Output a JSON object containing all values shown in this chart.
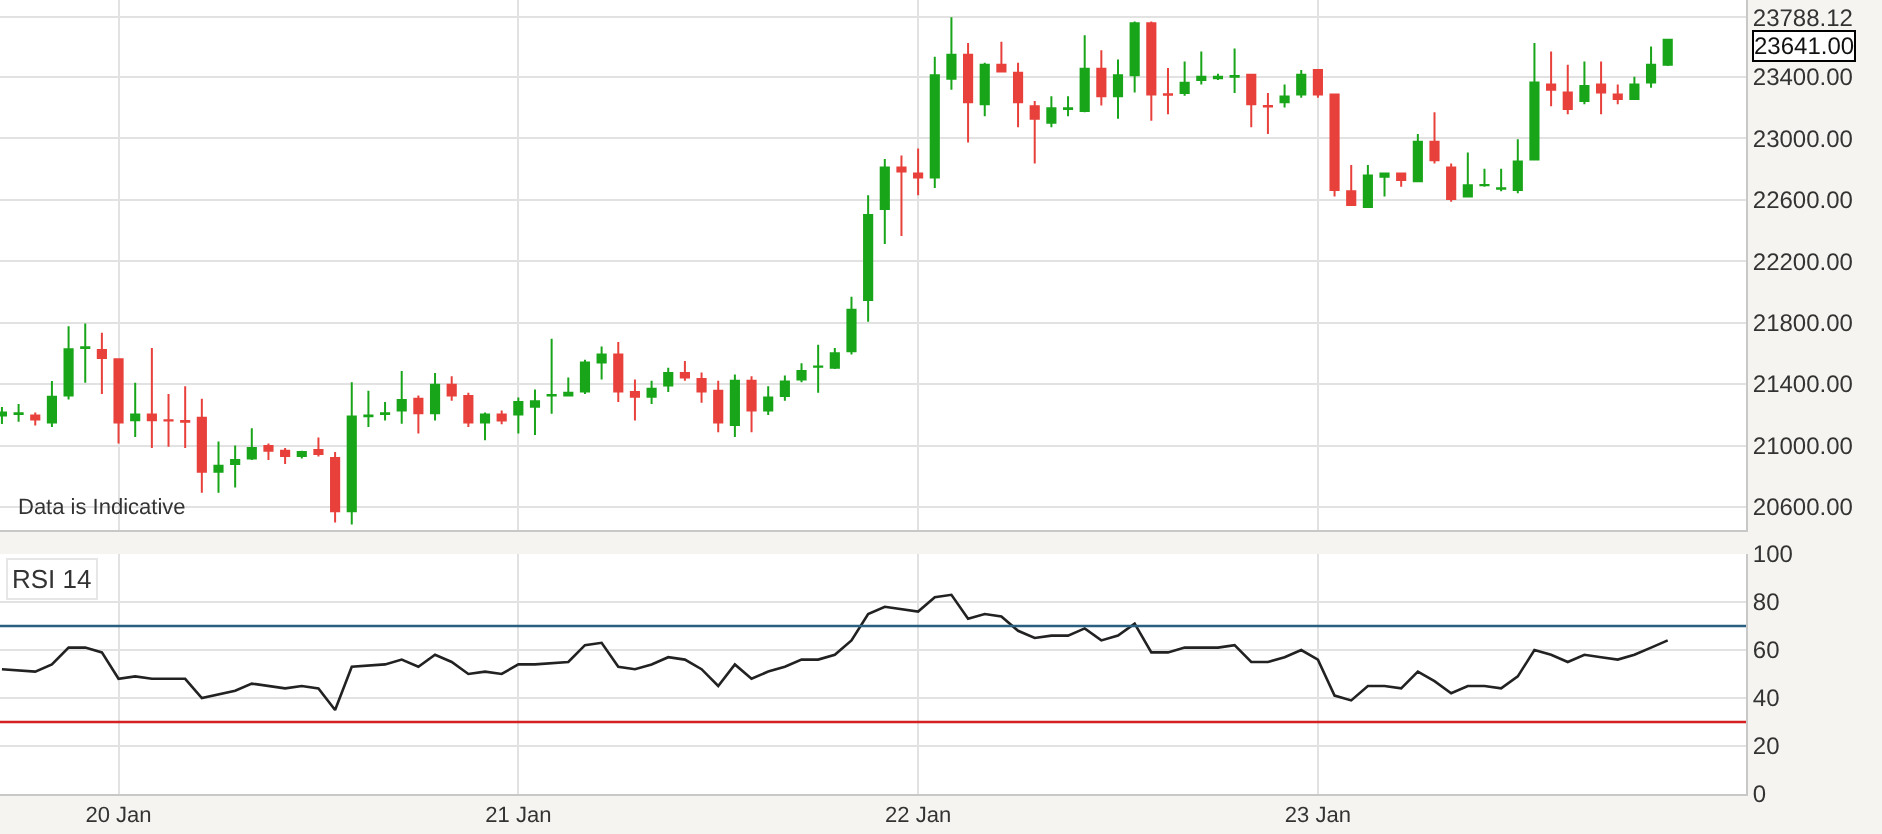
{
  "chart_data": [
    {
      "type": "candlestick",
      "x": [
        "--01-19T17:00",
        "--01-19T18:00",
        "--01-19T19:00",
        "--01-19T20:00",
        "--01-19T21:00",
        "--01-19T22:00",
        "--01-19T23:00",
        "--01-20T00:00",
        "--01-20T01:00",
        "--01-20T02:00",
        "--01-20T03:00",
        "--01-20T04:00",
        "--01-20T05:00",
        "--01-20T06:00",
        "--01-20T07:00",
        "--01-20T08:00",
        "--01-20T09:00",
        "--01-20T10:00",
        "--01-20T11:00",
        "--01-20T12:00",
        "--01-20T13:00",
        "--01-20T14:00",
        "--01-20T15:00",
        "--01-20T16:00",
        "--01-20T17:00",
        "--01-20T18:00",
        "--01-20T19:00",
        "--01-20T20:00",
        "--01-20T21:00",
        "--01-20T22:00",
        "--01-20T23:00",
        "--01-21T00:00",
        "--01-21T01:00",
        "--01-21T02:00",
        "--01-21T03:00",
        "--01-21T04:00",
        "--01-21T05:00",
        "--01-21T06:00",
        "--01-21T07:00",
        "--01-21T08:00",
        "--01-21T09:00",
        "--01-21T10:00",
        "--01-21T11:00",
        "--01-21T12:00",
        "--01-21T13:00",
        "--01-21T14:00",
        "--01-21T15:00",
        "--01-21T16:00",
        "--01-21T17:00",
        "--01-21T18:00",
        "--01-21T19:00",
        "--01-21T20:00",
        "--01-21T21:00",
        "--01-21T22:00",
        "--01-21T23:00",
        "--01-22T00:00",
        "--01-22T01:00",
        "--01-22T02:00",
        "--01-22T03:00",
        "--01-22T04:00",
        "--01-22T05:00",
        "--01-22T06:00",
        "--01-22T07:00",
        "--01-22T08:00",
        "--01-22T09:00",
        "--01-22T10:00",
        "--01-22T11:00",
        "--01-22T12:00",
        "--01-22T13:00",
        "--01-22T14:00",
        "--01-22T15:00",
        "--01-22T16:00",
        "--01-22T17:00",
        "--01-22T18:00",
        "--01-22T19:00",
        "--01-22T20:00",
        "--01-22T21:00",
        "--01-22T22:00",
        "--01-22T23:00",
        "--01-23T00:00",
        "--01-23T01:00",
        "--01-23T02:00",
        "--01-23T03:00",
        "--01-23T04:00",
        "--01-23T05:00",
        "--01-23T06:00",
        "--01-23T07:00",
        "--01-23T08:00",
        "--01-23T09:00",
        "--01-23T10:00",
        "--01-23T11:00",
        "--01-23T12:00",
        "--01-23T13:00",
        "--01-23T14:00",
        "--01-23T15:00",
        "--01-23T16:00",
        "--01-23T17:00",
        "--01-23T18:00",
        "--01-23T19:00",
        "--01-23T20:00",
        "--01-23T21:00"
      ],
      "ohlc": [
        [
          21195,
          21250,
          21140,
          21215
        ],
        [
          21205,
          21270,
          21155,
          21210
        ],
        [
          21195,
          21215,
          21130,
          21170
        ],
        [
          21150,
          21420,
          21120,
          21318
        ],
        [
          21326,
          21776,
          21300,
          21626
        ],
        [
          21635,
          21794,
          21408,
          21640
        ],
        [
          21622,
          21734,
          21335,
          21570
        ],
        [
          21562,
          21565,
          21013,
          21150
        ],
        [
          21164,
          21408,
          21056,
          21202
        ],
        [
          21202,
          21635,
          20983,
          21164
        ],
        [
          21165,
          21335,
          20992,
          21162
        ],
        [
          21160,
          21386,
          20983,
          21155
        ],
        [
          21180,
          21305,
          20692,
          20829
        ],
        [
          20829,
          21026,
          20692,
          20868
        ],
        [
          20880,
          21000,
          20726,
          20906
        ],
        [
          20915,
          21112,
          20905,
          20983
        ],
        [
          20996,
          21013,
          20905,
          20966
        ],
        [
          20966,
          20983,
          20880,
          20932
        ],
        [
          20932,
          20966,
          20915,
          20958
        ],
        [
          20970,
          21052,
          20928,
          20945
        ],
        [
          20919,
          20958,
          20499,
          20572
        ],
        [
          20572,
          21412,
          20486,
          21189
        ],
        [
          21190,
          21356,
          21120,
          21195
        ],
        [
          21205,
          21283,
          21163,
          21210
        ],
        [
          21228,
          21485,
          21142,
          21296
        ],
        [
          21305,
          21326,
          21078,
          21210
        ],
        [
          21210,
          21472,
          21163,
          21395
        ],
        [
          21395,
          21451,
          21292,
          21326
        ],
        [
          21322,
          21343,
          21120,
          21150
        ],
        [
          21150,
          21215,
          21035,
          21202
        ],
        [
          21202,
          21228,
          21138,
          21163
        ],
        [
          21202,
          21313,
          21078,
          21283
        ],
        [
          21253,
          21365,
          21069,
          21288
        ],
        [
          21325,
          21695,
          21206,
          21328
        ],
        [
          21326,
          21442,
          21320,
          21343
        ],
        [
          21352,
          21558,
          21335,
          21541
        ],
        [
          21541,
          21644,
          21429,
          21592
        ],
        [
          21592,
          21673,
          21283,
          21352
        ],
        [
          21348,
          21429,
          21163,
          21318
        ],
        [
          21318,
          21421,
          21271,
          21369
        ],
        [
          21391,
          21506,
          21348,
          21472
        ],
        [
          21472,
          21550,
          21421,
          21442
        ],
        [
          21433,
          21476,
          21279,
          21352
        ],
        [
          21356,
          21421,
          21086,
          21150
        ],
        [
          21133,
          21463,
          21056,
          21421
        ],
        [
          21421,
          21451,
          21086,
          21228
        ],
        [
          21228,
          21386,
          21198,
          21313
        ],
        [
          21322,
          21455,
          21292,
          21416
        ],
        [
          21429,
          21536,
          21412,
          21485
        ],
        [
          21513,
          21656,
          21343,
          21515
        ],
        [
          21506,
          21635,
          21498,
          21600
        ],
        [
          21613,
          21969,
          21592,
          21884
        ],
        [
          21948,
          22629,
          21806,
          22501
        ],
        [
          22539,
          22865,
          22312,
          22809
        ],
        [
          22809,
          22887,
          22364,
          22784
        ],
        [
          22771,
          22934,
          22629,
          22745
        ],
        [
          22745,
          23530,
          22677,
          23410
        ],
        [
          23388,
          23788.12,
          23315,
          23543
        ],
        [
          23543,
          23620,
          22972,
          23234
        ],
        [
          23221,
          23491,
          23144,
          23478
        ],
        [
          23478,
          23628,
          23430,
          23435
        ],
        [
          23427,
          23491,
          23071,
          23234
        ],
        [
          23208,
          23243,
          22835,
          23127
        ],
        [
          23101,
          23273,
          23071,
          23195
        ],
        [
          23191,
          23273,
          23144,
          23195
        ],
        [
          23178,
          23671,
          23170,
          23453
        ],
        [
          23453,
          23573,
          23213,
          23273
        ],
        [
          23273,
          23513,
          23127,
          23410
        ],
        [
          23410,
          23760,
          23298,
          23748
        ],
        [
          23748,
          23760,
          23114,
          23285
        ],
        [
          23286,
          23457,
          23157,
          23283
        ],
        [
          23294,
          23500,
          23277,
          23362
        ],
        [
          23380,
          23564,
          23350,
          23401
        ],
        [
          23390,
          23420,
          23380,
          23401
        ],
        [
          23401,
          23585,
          23294,
          23405
        ],
        [
          23414,
          23420,
          23071,
          23221
        ],
        [
          23210,
          23294,
          23028,
          23206
        ],
        [
          23234,
          23350,
          23200,
          23272
        ],
        [
          23285,
          23444,
          23264,
          23414
        ],
        [
          23444,
          23450,
          23264,
          23285
        ],
        [
          23285,
          23290,
          22621,
          22664
        ],
        [
          22655,
          22826,
          22560,
          22565
        ],
        [
          22552,
          22826,
          22548,
          22758
        ],
        [
          22750,
          22775,
          22621,
          22771
        ],
        [
          22771,
          22775,
          22685,
          22728
        ],
        [
          22720,
          23028,
          22715,
          22977
        ],
        [
          22977,
          23170,
          22835,
          22857
        ],
        [
          22810,
          22835,
          22587,
          22604
        ],
        [
          22621,
          22908,
          22615,
          22694
        ],
        [
          22694,
          22801,
          22685,
          22696
        ],
        [
          22672,
          22801,
          22655,
          22674
        ],
        [
          22664,
          22994,
          22642,
          22848
        ],
        [
          22861,
          23620,
          22855,
          23363
        ],
        [
          23350,
          23564,
          23208,
          23315
        ],
        [
          23298,
          23478,
          23157,
          23191
        ],
        [
          23243,
          23500,
          23221,
          23341
        ],
        [
          23350,
          23500,
          23157,
          23298
        ],
        [
          23285,
          23350,
          23221,
          23255
        ],
        [
          23255,
          23401,
          23250,
          23350
        ],
        [
          23363,
          23598,
          23329,
          23478
        ],
        [
          23478,
          23645,
          23470,
          23641
        ]
      ],
      "colors": [
        "#19a519",
        "#19a519",
        "#e8403b",
        "#19a519",
        "#19a519",
        "#19a519",
        "#e8403b",
        "#e8403b",
        "#19a519",
        "#e8403b",
        "#e8403b",
        "#e8403b",
        "#e8403b",
        "#19a519",
        "#19a519",
        "#19a519",
        "#e8403b",
        "#e8403b",
        "#19a519",
        "#e8403b",
        "#e8403b",
        "#19a519",
        "#19a519",
        "#19a519",
        "#19a519",
        "#e8403b",
        "#19a519",
        "#e8403b",
        "#e8403b",
        "#19a519",
        "#e8403b",
        "#19a519",
        "#19a519",
        "#19a519",
        "#19a519",
        "#19a519",
        "#19a519",
        "#e8403b",
        "#e8403b",
        "#19a519",
        "#19a519",
        "#e8403b",
        "#e8403b",
        "#e8403b",
        "#19a519",
        "#e8403b",
        "#19a519",
        "#19a519",
        "#19a519",
        "#19a519",
        "#19a519",
        "#19a519",
        "#19a519",
        "#19a519",
        "#e8403b",
        "#e8403b",
        "#19a519",
        "#19a519",
        "#e8403b",
        "#19a519",
        "#e8403b",
        "#e8403b",
        "#e8403b",
        "#19a519",
        "#19a519",
        "#19a519",
        "#e8403b",
        "#19a519",
        "#19a519",
        "#e8403b",
        "#e8403b",
        "#19a519",
        "#19a519",
        "#19a519",
        "#19a519",
        "#e8403b",
        "#e8403b",
        "#19a519",
        "#19a519",
        "#e8403b",
        "#e8403b",
        "#e8403b",
        "#19a519",
        "#19a519",
        "#e8403b",
        "#19a519",
        "#e8403b",
        "#e8403b",
        "#19a519",
        "#19a519",
        "#19a519",
        "#19a519",
        "#19a519",
        "#e8403b",
        "#e8403b",
        "#19a519",
        "#e8403b",
        "#e8403b",
        "#19a519",
        "#19a519",
        "#19a519"
      ],
      "xlim": [
        "--01-19T16:53",
        "--01-24T01:42"
      ],
      "xticks": [
        {
          "value": "--01-20",
          "label": null
        },
        {
          "value": "--01-21",
          "label": null
        },
        {
          "value": "--01-22",
          "label": null
        },
        {
          "value": "--01-23",
          "label": null
        }
      ],
      "ylim": [
        20450,
        23900
      ],
      "yticks": [
        {
          "value": 20600,
          "label": "20600.00"
        },
        {
          "value": 21000,
          "label": "21000.00"
        },
        {
          "value": 21400,
          "label": "21400.00"
        },
        {
          "value": 21800,
          "label": "21800.00"
        },
        {
          "value": 22200,
          "label": "22200.00"
        },
        {
          "value": 22600,
          "label": "22600.00"
        },
        {
          "value": 23000,
          "label": "23000.00"
        },
        {
          "value": 23400,
          "label": "23400.00"
        },
        {
          "value": 23788.12,
          "label": "23788.12"
        }
      ],
      "annotations": [
        "Data is Indicative",
        "23641.00"
      ],
      "tick_labels": "y",
      "grid": true
    },
    {
      "type": "line",
      "title": "RSI 14",
      "x": [
        "--01-19T17:00",
        "--01-19T19:00",
        "--01-19T20:00",
        "--01-19T21:00",
        "--01-19T22:00",
        "--01-19T23:00",
        "--01-20T00:00",
        "--01-20T01:00",
        "--01-20T02:00",
        "--01-20T04:00",
        "--01-20T05:00",
        "--01-20T07:00",
        "--01-20T08:00",
        "--01-20T10:00",
        "--01-20T11:00",
        "--01-20T12:00",
        "--01-20T13:00",
        "--01-20T14:00",
        "--01-20T16:00",
        "--01-20T17:00",
        "--01-20T18:00",
        "--01-20T19:00",
        "--01-20T20:00",
        "--01-20T21:00",
        "--01-20T22:00",
        "--01-20T23:00",
        "--01-21T00:00",
        "--01-21T01:00",
        "--01-21T03:00",
        "--01-21T04:00",
        "--01-21T05:00",
        "--01-21T06:00",
        "--01-21T07:00",
        "--01-21T08:00",
        "--01-21T09:00",
        "--01-21T10:00",
        "--01-21T11:00",
        "--01-21T12:00",
        "--01-21T13:00",
        "--01-21T14:00",
        "--01-21T15:00",
        "--01-21T16:00",
        "--01-21T17:00",
        "--01-21T18:00",
        "--01-21T19:00",
        "--01-21T20:00",
        "--01-21T21:00",
        "--01-21T22:00",
        "--01-22T00:00",
        "--01-22T01:00",
        "--01-22T02:00",
        "--01-22T03:00",
        "--01-22T04:00",
        "--01-22T05:00",
        "--01-22T06:00",
        "--01-22T07:00",
        "--01-22T08:00",
        "--01-22T09:00",
        "--01-22T10:00",
        "--01-22T11:00",
        "--01-22T12:00",
        "--01-22T13:00",
        "--01-22T14:00",
        "--01-22T15:00",
        "--01-22T16:00",
        "--01-22T18:00",
        "--01-22T19:00",
        "--01-22T20:00",
        "--01-22T21:00",
        "--01-22T22:00",
        "--01-22T23:00",
        "--01-23T00:00",
        "--01-23T01:00",
        "--01-23T02:00",
        "--01-23T03:00",
        "--01-23T04:00",
        "--01-23T05:00",
        "--01-23T06:00",
        "--01-23T07:00",
        "--01-23T08:00",
        "--01-23T09:00",
        "--01-23T10:00",
        "--01-23T11:00",
        "--01-23T12:00",
        "--01-23T13:00",
        "--01-23T14:00",
        "--01-23T15:00",
        "--01-23T16:00",
        "--01-23T17:00",
        "--01-23T18:00",
        "--01-23T19:00",
        "--01-23T20:00",
        "--01-23T21:00"
      ],
      "series": [
        {
          "color": "#222222",
          "values": [
            52,
            51,
            54,
            61,
            61,
            59,
            48,
            49,
            48,
            48,
            40,
            43,
            46,
            44,
            45,
            44,
            35,
            53,
            54,
            56,
            53,
            58,
            55,
            50,
            51,
            50,
            54,
            54,
            55,
            62,
            63,
            53,
            52,
            54,
            57,
            56,
            52,
            45,
            54,
            48,
            51,
            53,
            56,
            56,
            58,
            64,
            75,
            78,
            76,
            82,
            83,
            73,
            75,
            74,
            68,
            65,
            66,
            66,
            69,
            64,
            66,
            71,
            59,
            59,
            61,
            61,
            62,
            55,
            55,
            57,
            60,
            56,
            41,
            39,
            45,
            45,
            44,
            51,
            47,
            42,
            45,
            45,
            44,
            49,
            60,
            58,
            55,
            58,
            57,
            56,
            58,
            61,
            64
          ]
        }
      ],
      "xlim": [
        "--01-19T16:53",
        "--01-24T01:42"
      ],
      "xticks": [
        {
          "value": "--01-20",
          "label": "20 Jan"
        },
        {
          "value": "--01-21",
          "label": "21 Jan"
        },
        {
          "value": "--01-22",
          "label": "22 Jan"
        },
        {
          "value": "--01-23",
          "label": "23 Jan"
        }
      ],
      "ylim": [
        0,
        100
      ],
      "yticks": [
        0,
        20,
        40,
        60,
        80,
        100
      ],
      "ref_lines": [
        {
          "axis": "y",
          "value": 70,
          "color": "#2a5f80"
        },
        {
          "axis": "y",
          "value": 30,
          "color": "#d42020"
        }
      ],
      "grid": true,
      "marker": "none",
      "line_style": "solid"
    }
  ]
}
